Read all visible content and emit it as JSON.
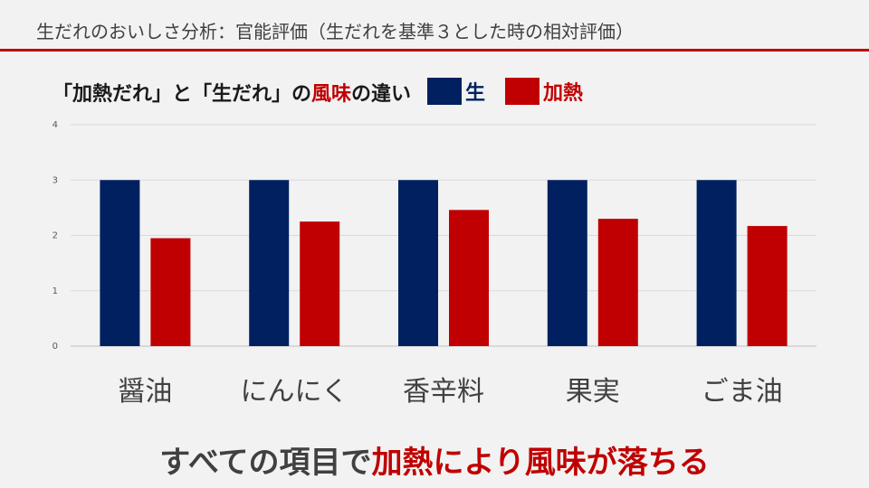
{
  "slide_title": "生だれのおいしさ分析：官能評価（生だれを基準３とした時の相対評価）",
  "chart_title": {
    "part1": "「加熱だれ」と「生だれ」の",
    "part2": "風味",
    "part3": "の違い"
  },
  "conclusion": {
    "part1": "すべての項目で",
    "part2": "加熱により風味が落ちる"
  },
  "colors": {
    "raw": "#002060",
    "heated": "#c00000",
    "accent": "#c00000"
  },
  "chart_data": {
    "type": "bar",
    "title": "「加熱だれ」と「生だれ」の風味の違い",
    "categories": [
      "醤油",
      "にんにく",
      "香辛料",
      "果実",
      "ごま油"
    ],
    "series": [
      {
        "name": "生",
        "color": "#002060",
        "values": [
          3,
          3,
          3,
          3,
          3
        ]
      },
      {
        "name": "加熱",
        "color": "#c00000",
        "values": [
          1.95,
          2.25,
          2.46,
          2.3,
          2.17
        ]
      }
    ],
    "ylim": [
      0,
      4
    ],
    "yticks": [
      "0",
      "1",
      "2",
      "3",
      "4"
    ],
    "grid": true,
    "legend": "top"
  }
}
